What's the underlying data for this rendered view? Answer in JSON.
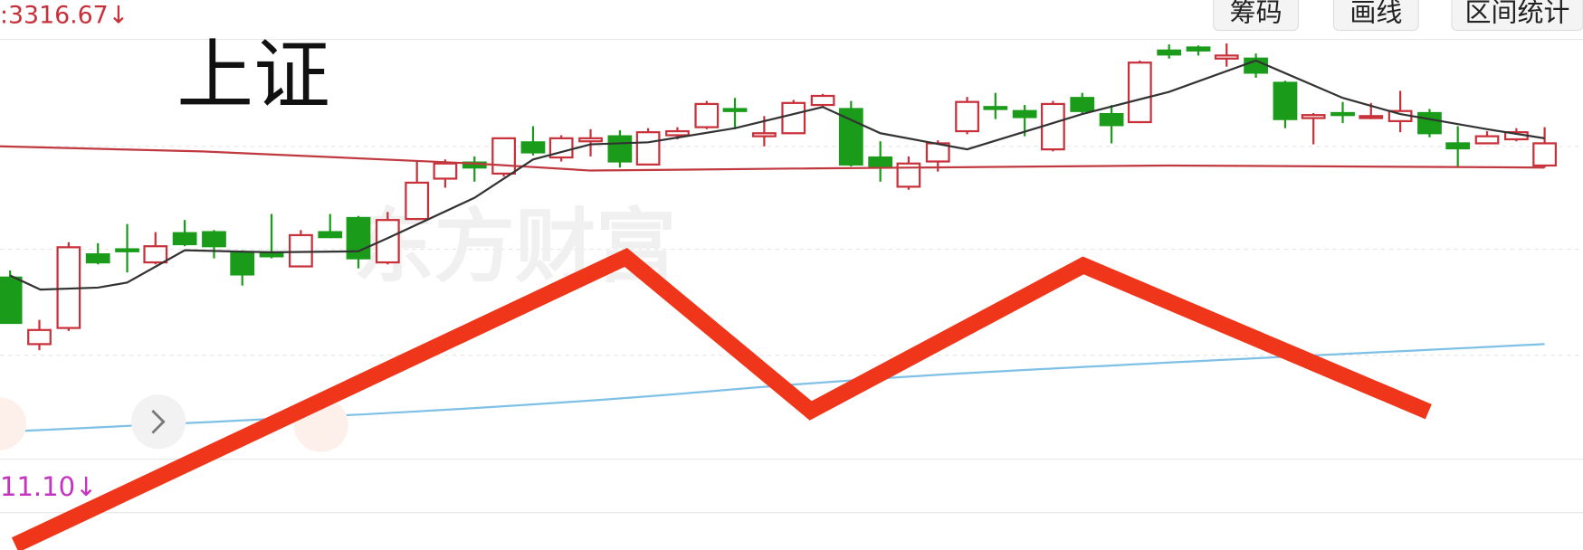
{
  "header": {
    "price": ":3316.67↓",
    "buttons": [
      "筹码",
      "画线",
      "区间统计"
    ]
  },
  "label": "上证",
  "indicator": "11.10↓",
  "watermark": "东方财富"
}
